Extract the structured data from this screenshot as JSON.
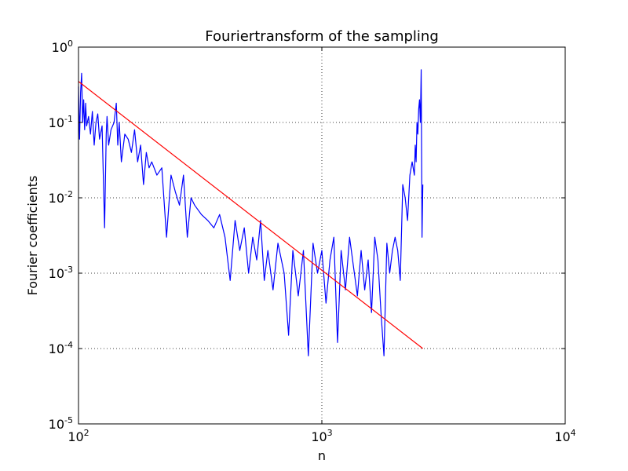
{
  "chart_data": {
    "type": "line",
    "title": "Fouriertransform of the sampling",
    "xlabel": "n",
    "ylabel": "Fourier coefficients",
    "xscale": "log",
    "yscale": "log",
    "xlim": [
      100,
      10000
    ],
    "ylim": [
      1e-05,
      1
    ],
    "grid": true,
    "x_ticks": [
      {
        "base": "10",
        "exp": "2",
        "value": 100
      },
      {
        "base": "10",
        "exp": "3",
        "value": 1000
      },
      {
        "base": "10",
        "exp": "4",
        "value": 10000
      }
    ],
    "y_ticks": [
      {
        "base": "10",
        "exp": "-5",
        "value": 1e-05
      },
      {
        "base": "10",
        "exp": "-4",
        "value": 0.0001
      },
      {
        "base": "10",
        "exp": "-3",
        "value": 0.001
      },
      {
        "base": "10",
        "exp": "-2",
        "value": 0.01
      },
      {
        "base": "10",
        "exp": "-1",
        "value": 0.1
      },
      {
        "base": "10",
        "exp": "0",
        "value": 1
      }
    ],
    "series": [
      {
        "color": "#0000ff",
        "x": [
          100,
          101,
          102,
          103,
          104,
          105,
          106,
          107,
          108,
          110,
          112,
          114,
          116,
          118,
          120,
          122,
          125,
          128,
          130,
          131,
          133,
          136,
          140,
          143,
          145,
          147,
          150,
          155,
          160,
          165,
          170,
          175,
          180,
          185,
          190,
          195,
          200,
          210,
          220,
          230,
          240,
          250,
          260,
          270,
          280,
          290,
          300,
          320,
          340,
          360,
          380,
          400,
          420,
          440,
          460,
          480,
          500,
          520,
          540,
          560,
          580,
          600,
          630,
          660,
          700,
          730,
          760,
          800,
          840,
          880,
          920,
          960,
          1000,
          1040,
          1080,
          1120,
          1160,
          1200,
          1250,
          1300,
          1350,
          1400,
          1450,
          1500,
          1550,
          1600,
          1650,
          1700,
          1750,
          1800,
          1850,
          1900,
          1950,
          2000,
          2050,
          2100,
          2150,
          2200,
          2250,
          2300,
          2350,
          2400,
          2420,
          2440,
          2460,
          2480,
          2500,
          2520,
          2540,
          2560,
          2580,
          2600
        ],
        "y": [
          0.3,
          0.06,
          0.25,
          0.45,
          0.1,
          0.2,
          0.08,
          0.18,
          0.09,
          0.12,
          0.07,
          0.14,
          0.05,
          0.1,
          0.13,
          0.06,
          0.09,
          0.004,
          0.07,
          0.12,
          0.05,
          0.08,
          0.1,
          0.18,
          0.05,
          0.1,
          0.03,
          0.07,
          0.06,
          0.04,
          0.08,
          0.03,
          0.05,
          0.015,
          0.04,
          0.025,
          0.03,
          0.02,
          0.025,
          0.003,
          0.02,
          0.012,
          0.008,
          0.02,
          0.003,
          0.01,
          0.008,
          0.006,
          0.005,
          0.004,
          0.006,
          0.003,
          0.0008,
          0.005,
          0.002,
          0.004,
          0.001,
          0.003,
          0.0015,
          0.005,
          0.0008,
          0.002,
          0.0006,
          0.0025,
          0.001,
          0.00015,
          0.002,
          0.0005,
          0.002,
          8e-05,
          0.0025,
          0.001,
          0.002,
          0.0004,
          0.0015,
          0.003,
          0.00012,
          0.002,
          0.0006,
          0.003,
          0.0012,
          0.0005,
          0.002,
          0.0006,
          0.0015,
          0.0003,
          0.003,
          0.0015,
          0.0003,
          8e-05,
          0.0025,
          0.001,
          0.002,
          0.003,
          0.002,
          0.0008,
          0.015,
          0.01,
          0.005,
          0.02,
          0.03,
          0.02,
          0.05,
          0.03,
          0.1,
          0.07,
          0.15,
          0.2,
          0.1,
          0.5,
          0.003,
          0.015
        ]
      },
      {
        "color": "#ff0000",
        "x": [
          100,
          2600
        ],
        "y": [
          0.35,
          0.0001
        ]
      }
    ]
  }
}
